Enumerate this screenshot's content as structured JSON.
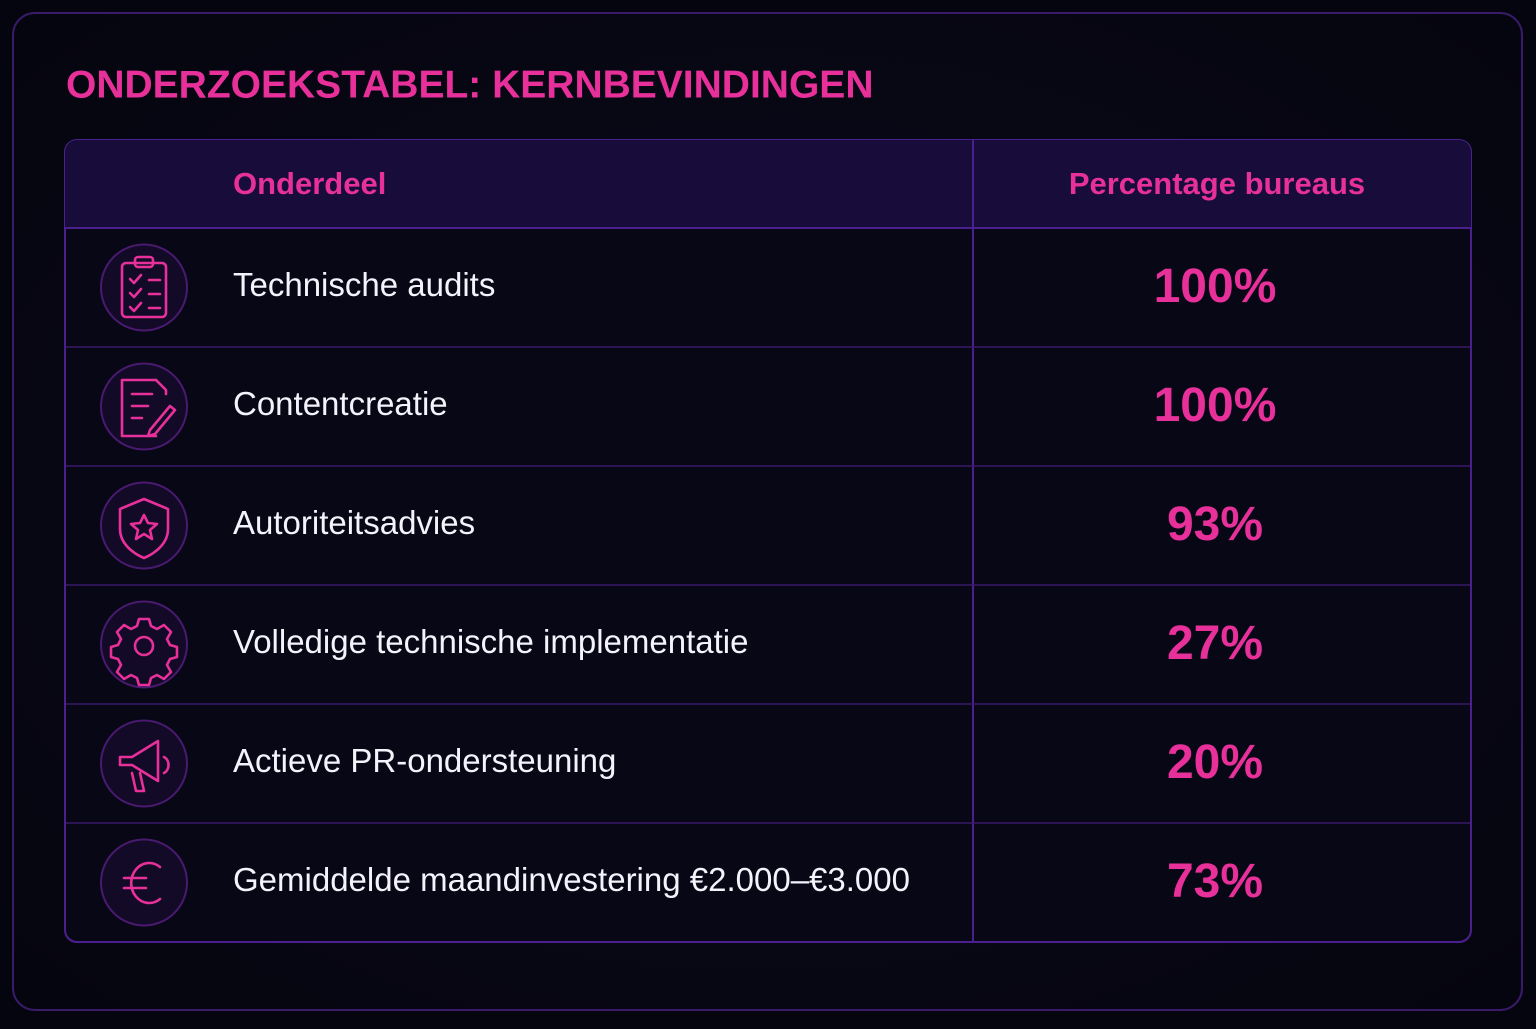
{
  "title": "ONDERZOEKSTABEL: KERNBEVINDINGEN",
  "table": {
    "header": [
      "Onderdeel",
      "Percentage bureaus"
    ],
    "rows": [
      [
        "Technische audits",
        "100%"
      ],
      [
        "Contentcreatie",
        "100%"
      ],
      [
        "Autoriteitsadvies",
        "93%"
      ],
      [
        "Volledige technische implementatie",
        "27%"
      ],
      [
        "Actieve PR-ondersteuning",
        "20%"
      ],
      [
        "Gemiddelde maandinvestering €2.000–€3.000",
        "73%"
      ]
    ]
  }
}
